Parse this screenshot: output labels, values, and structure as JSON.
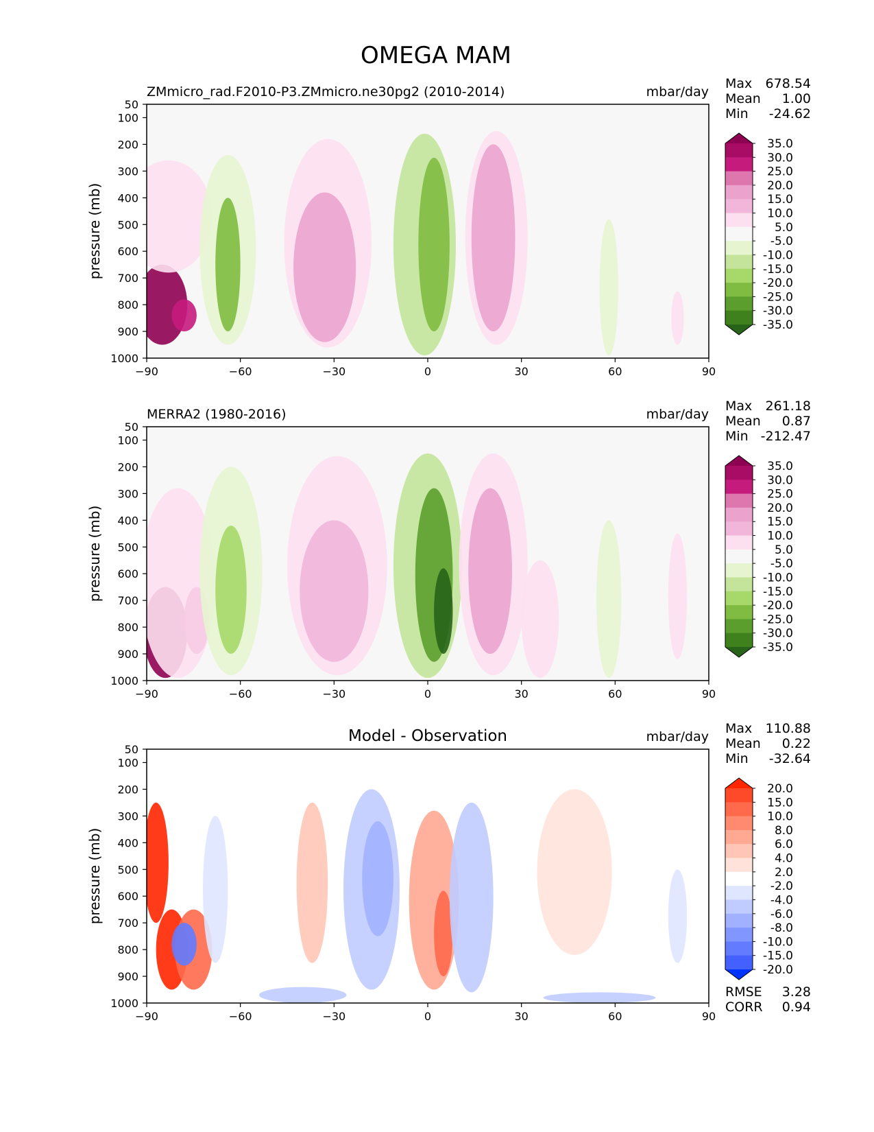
{
  "figure_title": "OMEGA MAM",
  "chart_data": [
    {
      "type": "contour",
      "title_left": "ZMmicro_rad.F2010-P3.ZMmicro.ne30pg2 (2010-2014)",
      "title_center": "",
      "units": "mbar/day",
      "ylabel": "pressure (mb)",
      "xlim": [
        -90,
        90
      ],
      "ylim": [
        1000,
        50
      ],
      "x_ticks": [
        "−90",
        "−60",
        "−30",
        "0",
        "30",
        "60",
        "90"
      ],
      "y_ticks": [
        "50",
        "100",
        "200",
        "300",
        "400",
        "500",
        "600",
        "700",
        "800",
        "900",
        "1000"
      ],
      "stats": [
        {
          "label": "Max",
          "value": "678.54"
        },
        {
          "label": "Mean",
          "value": "1.00"
        },
        {
          "label": "Min",
          "value": "-24.62"
        }
      ],
      "colorbar": {
        "levels": [
          "35.0",
          "30.0",
          "25.0",
          "20.0",
          "15.0",
          "10.0",
          "5.0",
          "-5.0",
          "-10.0",
          "-15.0",
          "-20.0",
          "-25.0",
          "-30.0",
          "-35.0"
        ],
        "colors": [
          "#8e0152",
          "#a80c65",
          "#c51b7d",
          "#de77ae",
          "#eba3ce",
          "#f1b6da",
          "#fde0ef",
          "#f7f7f7",
          "#e6f5d0",
          "#c3e49a",
          "#a6d96a",
          "#7fbc41",
          "#5c9e2e",
          "#3f821d",
          "#276419"
        ]
      },
      "features": [
        {
          "lat": -85,
          "p_top": 650,
          "p_bot": 950,
          "w": 8,
          "value": 40
        },
        {
          "lat": -78,
          "p_top": 780,
          "p_bot": 900,
          "w": 4,
          "value": 25
        },
        {
          "lat": -83,
          "p_top": 260,
          "p_bot": 680,
          "w": 14,
          "value": 8
        },
        {
          "lat": -64,
          "p_top": 240,
          "p_bot": 950,
          "w": 9,
          "value": -8
        },
        {
          "lat": -64,
          "p_top": 400,
          "p_bot": 900,
          "w": 4,
          "value": -22
        },
        {
          "lat": -32,
          "p_top": 180,
          "p_bot": 960,
          "w": 14,
          "value": 9
        },
        {
          "lat": -33,
          "p_top": 380,
          "p_bot": 940,
          "w": 10,
          "value": 15
        },
        {
          "lat": -1,
          "p_top": 160,
          "p_bot": 990,
          "w": 10,
          "value": -12
        },
        {
          "lat": 2,
          "p_top": 250,
          "p_bot": 900,
          "w": 5,
          "value": -24
        },
        {
          "lat": 22,
          "p_top": 150,
          "p_bot": 950,
          "w": 10,
          "value": 8
        },
        {
          "lat": 21,
          "p_top": 200,
          "p_bot": 900,
          "w": 7,
          "value": 15
        },
        {
          "lat": 58,
          "p_top": 480,
          "p_bot": 990,
          "w": 3,
          "value": -7
        },
        {
          "lat": 80,
          "p_top": 750,
          "p_bot": 950,
          "w": 2,
          "value": 8
        }
      ]
    },
    {
      "type": "contour",
      "title_left": "MERRA2 (1980-2016)",
      "title_center": "",
      "units": "mbar/day",
      "ylabel": "pressure (mb)",
      "xlim": [
        -90,
        90
      ],
      "ylim": [
        1000,
        50
      ],
      "x_ticks": [
        "−90",
        "−60",
        "−30",
        "0",
        "30",
        "60",
        "90"
      ],
      "y_ticks": [
        "50",
        "100",
        "200",
        "300",
        "400",
        "500",
        "600",
        "700",
        "800",
        "900",
        "1000"
      ],
      "stats": [
        {
          "label": "Max",
          "value": "261.18"
        },
        {
          "label": "Mean",
          "value": "0.87"
        },
        {
          "label": "Min",
          "value": "-212.47"
        }
      ],
      "colorbar": {
        "levels": [
          "35.0",
          "30.0",
          "25.0",
          "20.0",
          "15.0",
          "10.0",
          "5.0",
          "-5.0",
          "-10.0",
          "-15.0",
          "-20.0",
          "-25.0",
          "-30.0",
          "-35.0"
        ],
        "colors": [
          "#8e0152",
          "#a80c65",
          "#c51b7d",
          "#de77ae",
          "#eba3ce",
          "#f1b6da",
          "#fde0ef",
          "#f7f7f7",
          "#e6f5d0",
          "#c3e49a",
          "#a6d96a",
          "#7fbc41",
          "#5c9e2e",
          "#3f821d",
          "#276419"
        ]
      },
      "features": [
        {
          "lat": -84,
          "p_top": 650,
          "p_bot": 990,
          "w": 7,
          "value": 40
        },
        {
          "lat": -74,
          "p_top": 650,
          "p_bot": 900,
          "w": 4,
          "value": 25
        },
        {
          "lat": -80,
          "p_top": 280,
          "p_bot": 990,
          "w": 12,
          "value": 8
        },
        {
          "lat": -63,
          "p_top": 200,
          "p_bot": 980,
          "w": 10,
          "value": -8
        },
        {
          "lat": -63,
          "p_top": 420,
          "p_bot": 900,
          "w": 5,
          "value": -20
        },
        {
          "lat": -29,
          "p_top": 160,
          "p_bot": 980,
          "w": 16,
          "value": 9
        },
        {
          "lat": -30,
          "p_top": 400,
          "p_bot": 930,
          "w": 11,
          "value": 14
        },
        {
          "lat": 0,
          "p_top": 150,
          "p_bot": 990,
          "w": 11,
          "value": -12
        },
        {
          "lat": 2,
          "p_top": 280,
          "p_bot": 930,
          "w": 6,
          "value": -26
        },
        {
          "lat": 5,
          "p_top": 580,
          "p_bot": 900,
          "w": 3,
          "value": -36
        },
        {
          "lat": 21,
          "p_top": 150,
          "p_bot": 980,
          "w": 11,
          "value": 9
        },
        {
          "lat": 20,
          "p_top": 280,
          "p_bot": 900,
          "w": 7,
          "value": 18
        },
        {
          "lat": 36,
          "p_top": 550,
          "p_bot": 990,
          "w": 6,
          "value": 7
        },
        {
          "lat": 58,
          "p_top": 400,
          "p_bot": 990,
          "w": 4,
          "value": -7
        },
        {
          "lat": 80,
          "p_top": 450,
          "p_bot": 920,
          "w": 3,
          "value": 8
        }
      ]
    },
    {
      "type": "contour",
      "title_left": "",
      "title_center": "Model - Observation",
      "units": "mbar/day",
      "ylabel": "pressure (mb)",
      "xlim": [
        -90,
        90
      ],
      "ylim": [
        1000,
        50
      ],
      "x_ticks": [
        "−90",
        "−60",
        "−30",
        "0",
        "30",
        "60",
        "90"
      ],
      "y_ticks": [
        "50",
        "100",
        "200",
        "300",
        "400",
        "500",
        "600",
        "700",
        "800",
        "900",
        "1000"
      ],
      "stats": [
        {
          "label": "Max",
          "value": "110.88"
        },
        {
          "label": "Mean",
          "value": "0.22"
        },
        {
          "label": "Min",
          "value": "-32.64"
        }
      ],
      "footer_stats": [
        {
          "label": "RMSE",
          "value": "3.28"
        },
        {
          "label": "CORR",
          "value": "0.94"
        }
      ],
      "colorbar": {
        "levels": [
          "20.0",
          "15.0",
          "10.0",
          "8.0",
          "6.0",
          "4.0",
          "2.0",
          "-2.0",
          "-4.0",
          "-6.0",
          "-8.0",
          "-10.0",
          "-15.0",
          "-20.0"
        ],
        "colors": [
          "#ff2600",
          "#ff4a2a",
          "#ff6a4d",
          "#ff8a70",
          "#ffa993",
          "#ffc6b6",
          "#ffe3da",
          "#ffffff",
          "#dfe6ff",
          "#c0ccff",
          "#a1b1ff",
          "#8296ff",
          "#637bff",
          "#4460ff",
          "#0033ff"
        ]
      },
      "features": [
        {
          "lat": -87,
          "p_top": 250,
          "p_bot": 700,
          "w": 4,
          "value": 30
        },
        {
          "lat": -82,
          "p_top": 650,
          "p_bot": 950,
          "w": 5,
          "value": 25
        },
        {
          "lat": -75,
          "p_top": 650,
          "p_bot": 950,
          "w": 6,
          "value": 12
        },
        {
          "lat": -78,
          "p_top": 700,
          "p_bot": 860,
          "w": 4,
          "value": -12
        },
        {
          "lat": -68,
          "p_top": 300,
          "p_bot": 850,
          "w": 4,
          "value": -4
        },
        {
          "lat": -37,
          "p_top": 250,
          "p_bot": 850,
          "w": 5,
          "value": 4
        },
        {
          "lat": -18,
          "p_top": 200,
          "p_bot": 950,
          "w": 9,
          "value": -5
        },
        {
          "lat": -16,
          "p_top": 320,
          "p_bot": 750,
          "w": 5,
          "value": -8
        },
        {
          "lat": 2,
          "p_top": 280,
          "p_bot": 950,
          "w": 8,
          "value": 6
        },
        {
          "lat": 5,
          "p_top": 580,
          "p_bot": 900,
          "w": 3,
          "value": 14
        },
        {
          "lat": 14,
          "p_top": 250,
          "p_bot": 960,
          "w": 7,
          "value": -5
        },
        {
          "lat": 47,
          "p_top": 200,
          "p_bot": 820,
          "w": 12,
          "value": 3
        },
        {
          "lat": 80,
          "p_top": 500,
          "p_bot": 850,
          "w": 3,
          "value": -4
        },
        {
          "lat": -40,
          "p_top": 940,
          "p_bot": 1000,
          "w": 14,
          "value": -6
        },
        {
          "lat": 55,
          "p_top": 960,
          "p_bot": 1000,
          "w": 18,
          "value": -5
        }
      ]
    }
  ]
}
